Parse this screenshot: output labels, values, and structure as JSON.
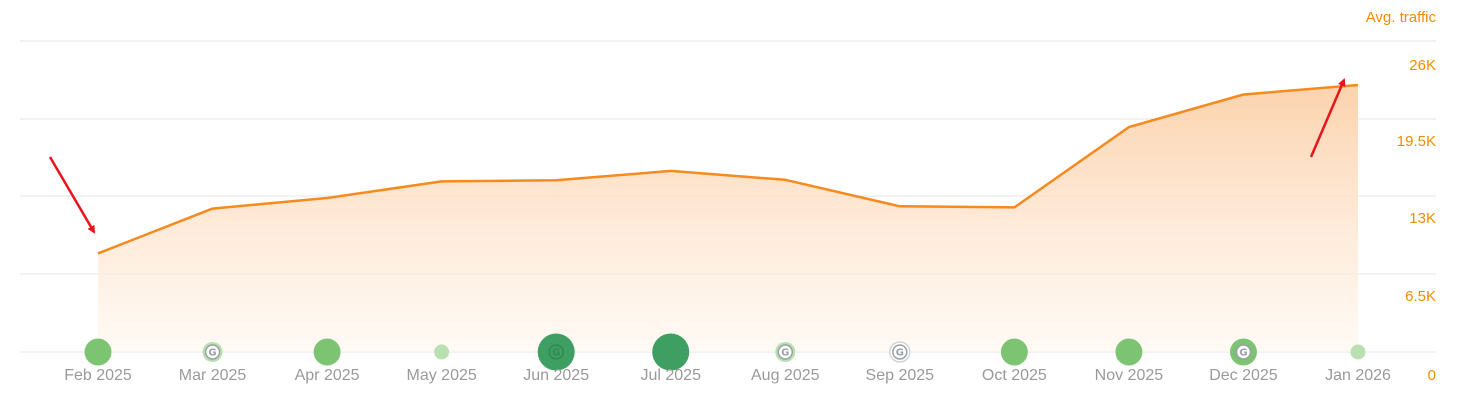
{
  "chart_data": {
    "type": "area",
    "title": "",
    "ylabel": "Avg. traffic",
    "xlabel": "",
    "ylim": [
      0,
      26000
    ],
    "y_ticks": [
      {
        "value": 0,
        "label": "0"
      },
      {
        "value": 6500,
        "label": "6.5K"
      },
      {
        "value": 13000,
        "label": "13K"
      },
      {
        "value": 19500,
        "label": "19.5K"
      },
      {
        "value": 26000,
        "label": "26K"
      }
    ],
    "categories": [
      "Feb 2025",
      "Mar 2025",
      "Apr 2025",
      "May 2025",
      "Jun 2025",
      "Jul 2025",
      "Aug 2025",
      "Sep 2025",
      "Oct 2025",
      "Nov 2025",
      "Dec 2025",
      "Jan 2026"
    ],
    "series": [
      {
        "values": [
          8900,
          12950,
          13900,
          15400,
          15500,
          16350,
          15550,
          13150,
          13050,
          20300,
          23250,
          24100
        ],
        "color": "#f58a1f"
      }
    ],
    "grid": true,
    "area_fill": "#fcd6b3",
    "markers": [
      {
        "category": "Feb 2025",
        "size": "medium",
        "shade": "medium",
        "google_icon": false
      },
      {
        "category": "Mar 2025",
        "size": "small",
        "shade": "light",
        "google_icon": true
      },
      {
        "category": "Apr 2025",
        "size": "medium",
        "shade": "medium",
        "google_icon": false
      },
      {
        "category": "May 2025",
        "size": "tiny",
        "shade": "light",
        "google_icon": false
      },
      {
        "category": "Jun 2025",
        "size": "large",
        "shade": "dark",
        "google_icon": true
      },
      {
        "category": "Jul 2025",
        "size": "large",
        "shade": "dark",
        "google_icon": false
      },
      {
        "category": "Aug 2025",
        "size": "small",
        "shade": "light",
        "google_icon": true
      },
      {
        "category": "Sep 2025",
        "size": "small",
        "shade": "none",
        "google_icon": true
      },
      {
        "category": "Oct 2025",
        "size": "medium",
        "shade": "medium",
        "google_icon": false
      },
      {
        "category": "Nov 2025",
        "size": "medium",
        "shade": "medium",
        "google_icon": false
      },
      {
        "category": "Dec 2025",
        "size": "medium",
        "shade": "medium",
        "google_icon": true
      },
      {
        "category": "Jan 2026",
        "size": "tiny",
        "shade": "light",
        "google_icon": false
      }
    ],
    "annotations": [
      {
        "type": "arrow",
        "points_to": "Feb 2025",
        "color": "#e8141b"
      },
      {
        "type": "arrow",
        "points_to": "Jan 2026",
        "color": "#e8141b"
      }
    ],
    "colors": {
      "marker_dark": "#3f9e62",
      "marker_medium": "#7cc472",
      "marker_light": "#b8e0b0",
      "google_icon": "#9aa0a6"
    }
  }
}
